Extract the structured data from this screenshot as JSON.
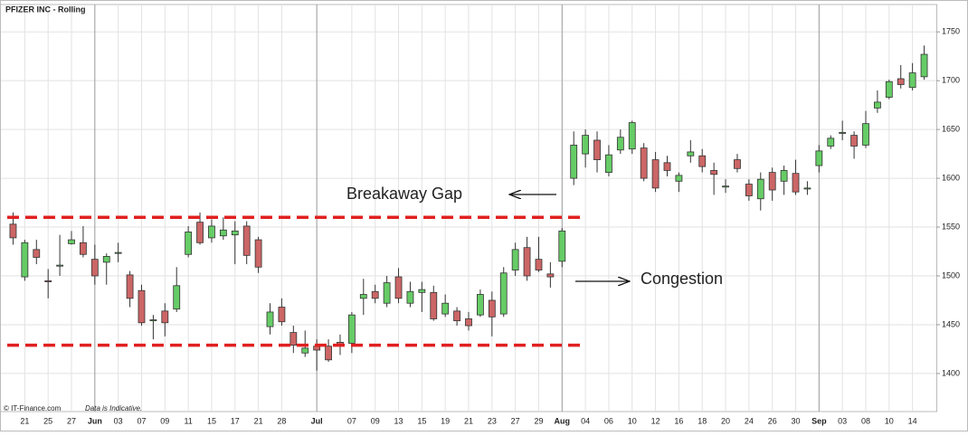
{
  "chart_data": {
    "type": "candlestick",
    "title": "PFIZER INC - Rolling",
    "source": "© IT-Finance.com",
    "note": "Data is Indicative.",
    "categories": [
      null,
      "21",
      null,
      "25",
      null,
      "27",
      null,
      "Jun",
      null,
      "03",
      null,
      "07",
      null,
      "09",
      null,
      "11",
      null,
      "15",
      null,
      "17",
      null,
      "21",
      null,
      "28",
      null,
      null,
      "Jul",
      null,
      null,
      "07",
      null,
      "09",
      null,
      "13",
      null,
      "15",
      null,
      "19",
      null,
      "21",
      null,
      "23",
      null,
      "27",
      null,
      "29",
      null,
      "Aug",
      null,
      "04",
      null,
      "06",
      null,
      "10",
      null,
      "12",
      null,
      "16",
      null,
      "18",
      null,
      "20",
      null,
      "24",
      null,
      "26",
      null,
      "30",
      null,
      "Sep",
      null,
      "03",
      null,
      "08",
      null,
      "10",
      null,
      "14",
      null
    ],
    "open": [
      1553,
      1499,
      1527,
      1495,
      1510,
      1533,
      1534,
      1517,
      1514,
      1523,
      1501,
      1485,
      1454,
      1464,
      1466,
      1522,
      1555,
      1539,
      1541,
      1542,
      1551,
      1537,
      1448,
      1468,
      1442,
      1421,
      1428,
      1428,
      1432,
      1431,
      1477,
      1484,
      1472,
      1499,
      1472,
      1483,
      1483,
      1461,
      1464,
      1456,
      1460,
      1475,
      1461,
      1506,
      1529,
      1517,
      1502,
      1515,
      1600,
      1625,
      1639,
      1606,
      1629,
      1630,
      1631,
      1619,
      1616,
      1597,
      1623,
      1623,
      1608,
      1591,
      1619,
      1594,
      1579,
      1606,
      1597,
      1605,
      1589,
      1613,
      1633,
      1646,
      1644,
      1634,
      1672,
      1683,
      1702,
      1693,
      1704
    ],
    "high": [
      1565,
      1537,
      1537,
      1507,
      1542,
      1546,
      1551,
      1532,
      1523,
      1534,
      1505,
      1491,
      1460,
      1472,
      1509,
      1551,
      1565,
      1558,
      1560,
      1556,
      1556,
      1540,
      1472,
      1477,
      1449,
      1444,
      1435,
      1435,
      1440,
      1463,
      1497,
      1491,
      1500,
      1508,
      1494,
      1494,
      1490,
      1481,
      1468,
      1463,
      1486,
      1484,
      1509,
      1534,
      1540,
      1540,
      1514,
      1549,
      1648,
      1650,
      1648,
      1634,
      1650,
      1659,
      1636,
      1627,
      1623,
      1606,
      1639,
      1630,
      1616,
      1599,
      1625,
      1599,
      1606,
      1611,
      1613,
      1619,
      1597,
      1634,
      1644,
      1659,
      1648,
      1669,
      1690,
      1701,
      1716,
      1718,
      1736
    ],
    "low": [
      1532,
      1495,
      1512,
      1477,
      1500,
      1532,
      1519,
      1491,
      1491,
      1514,
      1468,
      1449,
      1435,
      1438,
      1463,
      1519,
      1532,
      1534,
      1537,
      1512,
      1512,
      1503,
      1440,
      1449,
      1421,
      1417,
      1403,
      1412,
      1419,
      1421,
      1460,
      1472,
      1468,
      1472,
      1468,
      1463,
      1454,
      1458,
      1449,
      1444,
      1458,
      1438,
      1458,
      1500,
      1495,
      1504,
      1488,
      1509,
      1593,
      1611,
      1606,
      1602,
      1625,
      1625,
      1597,
      1586,
      1602,
      1586,
      1616,
      1606,
      1583,
      1585,
      1606,
      1577,
      1567,
      1577,
      1583,
      1583,
      1583,
      1606,
      1630,
      1639,
      1620,
      1631,
      1667,
      1681,
      1692,
      1690,
      1701
    ],
    "close": [
      1539,
      1534,
      1519,
      1494,
      1511,
      1537,
      1522,
      1500,
      1520,
      1524,
      1477,
      1452,
      1455,
      1452,
      1490,
      1545,
      1534,
      1551,
      1547,
      1546,
      1521,
      1509,
      1463,
      1453,
      1429,
      1426,
      1424,
      1414,
      1429,
      1460,
      1481,
      1477,
      1493,
      1477,
      1484,
      1486,
      1456,
      1472,
      1454,
      1449,
      1481,
      1458,
      1503,
      1527,
      1500,
      1506,
      1499,
      1546,
      1634,
      1644,
      1619,
      1624,
      1642,
      1657,
      1600,
      1590,
      1608,
      1603,
      1627,
      1612,
      1604,
      1592,
      1610,
      1582,
      1599,
      1588,
      1608,
      1586,
      1590,
      1628,
      1641,
      1647,
      1633,
      1656,
      1678,
      1699,
      1696,
      1708,
      1727
    ],
    "up_color": "#66cc66",
    "down_color": "#cc6666",
    "ylim": [
      1361,
      1778
    ],
    "yticks": [
      1400,
      1450,
      1500,
      1550,
      1600,
      1650,
      1700,
      1750
    ],
    "grid": true,
    "reference_lines": [
      1560,
      1429
    ],
    "reference_color": "#e02020",
    "annotations": [
      "Breakaway  Gap",
      "Congestion"
    ]
  }
}
